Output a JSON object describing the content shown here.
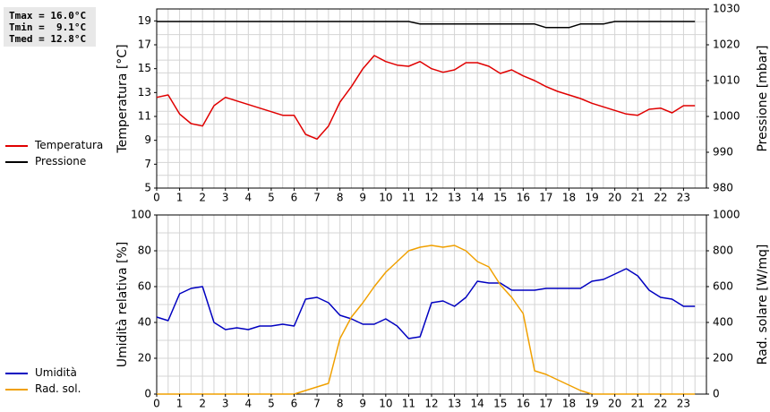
{
  "stats": {
    "tmax": "Tmax = 16.0°C",
    "tmin": "Tmin =  9.1°C",
    "tmed": "Tmed = 12.8°C"
  },
  "colors": {
    "temperature": "#e00000",
    "pressure": "#000000",
    "humidity": "#0000c0",
    "solar": "#f0a000",
    "grid": "#d4d4d4"
  },
  "legend": {
    "temperature": "Temperatura",
    "pressure": "Pressione",
    "humidity": "Umidità",
    "solar": "Rad. sol."
  },
  "chart_data": [
    {
      "type": "line",
      "ylabel": "Temperatura [°C]",
      "y2label": "Pressione [mbar]",
      "xlim": [
        0,
        24
      ],
      "ylim": [
        5,
        20
      ],
      "y2lim": [
        980,
        1030
      ],
      "xticks": [
        "0",
        "1",
        "2",
        "3",
        "4",
        "5",
        "6",
        "7",
        "8",
        "9",
        "10",
        "11",
        "12",
        "13",
        "14",
        "15",
        "16",
        "17",
        "18",
        "19",
        "20",
        "21",
        "22",
        "23"
      ],
      "yticks": [
        "5",
        "7",
        "9",
        "11",
        "13",
        "15",
        "17",
        "19"
      ],
      "y2ticks": [
        "980",
        "990",
        "1000",
        "1010",
        "1020",
        "1030"
      ],
      "grid": true,
      "legend_position": "left",
      "series": [
        {
          "name": "Temperatura",
          "axis": "left",
          "x": [
            0,
            0.5,
            1,
            1.5,
            2,
            2.5,
            3,
            3.5,
            4,
            4.5,
            5,
            5.5,
            6,
            6.5,
            7,
            7.5,
            8,
            8.5,
            9,
            9.5,
            10,
            10.5,
            11,
            11.5,
            12,
            12.5,
            13,
            13.5,
            14,
            14.5,
            15,
            15.5,
            16,
            16.5,
            17,
            17.5,
            18,
            18.5,
            19,
            19.5,
            20,
            20.5,
            21,
            21.5,
            22,
            22.5,
            23,
            23.5
          ],
          "values": [
            12.6,
            12.8,
            11.2,
            10.4,
            10.2,
            11.9,
            12.6,
            12.3,
            12.0,
            11.7,
            11.4,
            11.1,
            11.1,
            9.5,
            9.1,
            10.2,
            12.2,
            13.5,
            15.0,
            16.1,
            15.6,
            15.3,
            15.2,
            15.6,
            15.0,
            14.7,
            14.9,
            15.5,
            15.5,
            15.2,
            14.6,
            14.9,
            14.4,
            14.0,
            13.5,
            13.1,
            12.8,
            12.5,
            12.1,
            11.8,
            11.5,
            11.2,
            11.1,
            11.6,
            11.7,
            11.3,
            11.9,
            11.9
          ]
        },
        {
          "name": "Pressione",
          "axis": "right",
          "x": [
            0,
            11,
            11.5,
            16.5,
            17,
            18,
            18.5,
            19.5,
            20,
            23.5
          ],
          "values": [
            1026.5,
            1026.5,
            1025.8,
            1025.8,
            1024.8,
            1024.8,
            1025.8,
            1025.8,
            1026.5,
            1026.5
          ]
        }
      ]
    },
    {
      "type": "line",
      "ylabel": "Umidità relativa [%]",
      "y2label": "Rad. solare [W/mq]",
      "xlim": [
        0,
        24
      ],
      "ylim": [
        0,
        100
      ],
      "y2lim": [
        0,
        1000
      ],
      "xticks": [
        "0",
        "1",
        "2",
        "3",
        "4",
        "5",
        "6",
        "7",
        "8",
        "9",
        "10",
        "11",
        "12",
        "13",
        "14",
        "15",
        "16",
        "17",
        "18",
        "19",
        "20",
        "21",
        "22",
        "23"
      ],
      "yticks": [
        "0",
        "20",
        "40",
        "60",
        "80",
        "100"
      ],
      "y2ticks": [
        "0",
        "200",
        "400",
        "600",
        "800",
        "1000"
      ],
      "grid": true,
      "legend_position": "left",
      "series": [
        {
          "name": "Umidità",
          "axis": "left",
          "x": [
            0,
            0.5,
            1,
            1.5,
            2,
            2.5,
            3,
            3.5,
            4,
            4.5,
            5,
            5.5,
            6,
            6.5,
            7,
            7.5,
            8,
            8.5,
            9,
            9.5,
            10,
            10.5,
            11,
            11.5,
            12,
            12.5,
            13,
            13.5,
            14,
            14.5,
            15,
            15.5,
            16,
            16.5,
            17,
            17.5,
            18,
            18.5,
            19,
            19.5,
            20,
            20.5,
            21,
            21.5,
            22,
            22.5,
            23,
            23.5
          ],
          "values": [
            43,
            41,
            56,
            59,
            60,
            40,
            36,
            37,
            36,
            38,
            38,
            39,
            38,
            53,
            54,
            51,
            44,
            42,
            39,
            39,
            42,
            38,
            31,
            32,
            51,
            52,
            49,
            54,
            63,
            62,
            62,
            58,
            58,
            58,
            59,
            59,
            59,
            59,
            63,
            64,
            67,
            70,
            66,
            58,
            54,
            53,
            49,
            49
          ]
        },
        {
          "name": "Rad. sol.",
          "axis": "right",
          "x": [
            0,
            6,
            6.5,
            7,
            7.5,
            8,
            8.5,
            9,
            9.5,
            10,
            10.5,
            11,
            11.5,
            12,
            12.5,
            13,
            13.5,
            14,
            14.5,
            15,
            15.5,
            16,
            16.5,
            17,
            17.5,
            18,
            18.5,
            19,
            23.5
          ],
          "values": [
            0,
            0,
            20,
            40,
            60,
            310,
            430,
            510,
            600,
            680,
            740,
            800,
            820,
            830,
            820,
            830,
            800,
            740,
            710,
            610,
            540,
            450,
            130,
            110,
            80,
            50,
            20,
            0,
            0
          ]
        }
      ]
    }
  ]
}
